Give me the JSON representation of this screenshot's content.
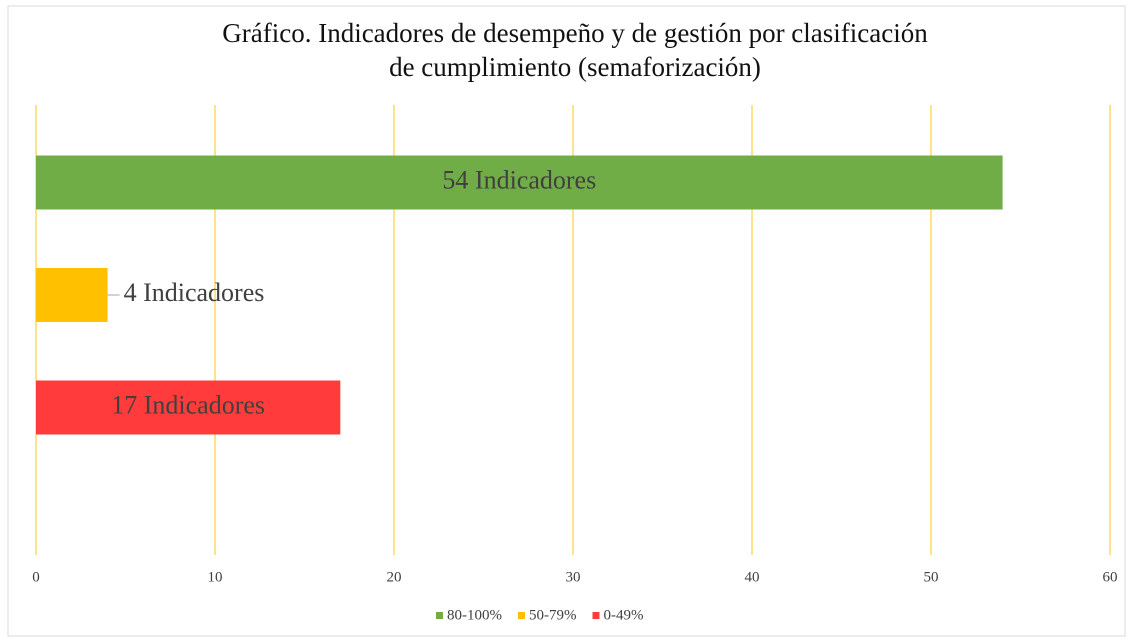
{
  "chart_data": {
    "type": "bar",
    "orientation": "horizontal",
    "title": [
      "Gráfico. Indicadores de desempeño y de gestión por clasificación",
      "de cumplimiento (semaforización)"
    ],
    "series": [
      {
        "name": "80-100%",
        "color": "#70ad47",
        "values": [
          54
        ],
        "value_labels": [
          "54 Indicadores"
        ]
      },
      {
        "name": "50-79%",
        "color": "#ffc000",
        "values": [
          4
        ],
        "value_labels": [
          "4 Indicadores"
        ]
      },
      {
        "name": "0-49%",
        "color": "#ff3b3b",
        "values": [
          17
        ],
        "value_labels": [
          "17 Indicadores"
        ]
      }
    ],
    "xlim": [
      0,
      60
    ],
    "xticks": [
      0,
      10,
      20,
      30,
      40,
      50,
      60
    ],
    "grid": true,
    "grid_color": "#ffd966",
    "legend": "bottom"
  }
}
